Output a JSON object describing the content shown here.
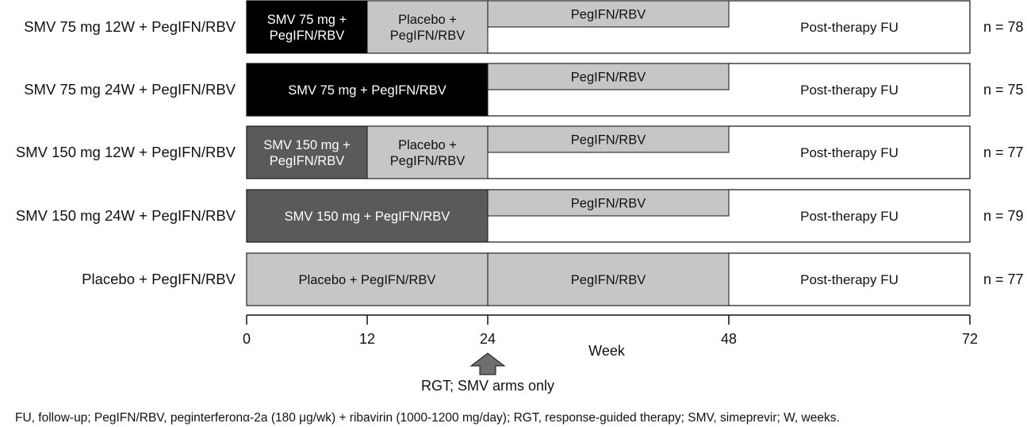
{
  "arms": [
    {
      "label": "SMV 75 mg 12W + PegIFN/RBV",
      "n": "n = 78",
      "segments": [
        {
          "start": 0,
          "end": 12,
          "lines": [
            "SMV 75 mg +",
            "PegIFN/RBV"
          ],
          "fill": "#000000",
          "text_color": "#ffffff"
        },
        {
          "start": 12,
          "end": 24,
          "lines": [
            "Placebo +",
            "PegIFN/RBV"
          ],
          "fill": "#c6c6c6",
          "text_color": "#111111"
        },
        {
          "start": 24,
          "end": 48,
          "lines": [
            "PegIFN/RBV"
          ],
          "fill": "#c6c6c6",
          "text_color": "#111111",
          "upper_half": true
        }
      ],
      "fu_label": "Post-therapy FU"
    },
    {
      "label": "SMV 75 mg 24W + PegIFN/RBV",
      "n": "n = 75",
      "segments": [
        {
          "start": 0,
          "end": 24,
          "lines": [
            "SMV 75 mg + PegIFN/RBV"
          ],
          "fill": "#000000",
          "text_color": "#ffffff"
        },
        {
          "start": 24,
          "end": 48,
          "lines": [
            "PegIFN/RBV"
          ],
          "fill": "#c6c6c6",
          "text_color": "#111111",
          "upper_half": true
        }
      ],
      "fu_label": "Post-therapy FU"
    },
    {
      "label": "SMV 150 mg 12W + PegIFN/RBV",
      "n": "n = 77",
      "segments": [
        {
          "start": 0,
          "end": 12,
          "lines": [
            "SMV 150 mg +",
            "PegIFN/RBV"
          ],
          "fill": "#5a5a5a",
          "text_color": "#ffffff"
        },
        {
          "start": 12,
          "end": 24,
          "lines": [
            "Placebo +",
            "PegIFN/RBV"
          ],
          "fill": "#c6c6c6",
          "text_color": "#111111"
        },
        {
          "start": 24,
          "end": 48,
          "lines": [
            "PegIFN/RBV"
          ],
          "fill": "#c6c6c6",
          "text_color": "#111111",
          "upper_half": true
        }
      ],
      "fu_label": "Post-therapy FU"
    },
    {
      "label": "SMV 150 mg 24W + PegIFN/RBV",
      "n": "n = 79",
      "segments": [
        {
          "start": 0,
          "end": 24,
          "lines": [
            "SMV 150 mg + PegIFN/RBV"
          ],
          "fill": "#5a5a5a",
          "text_color": "#ffffff"
        },
        {
          "start": 24,
          "end": 48,
          "lines": [
            "PegIFN/RBV"
          ],
          "fill": "#c6c6c6",
          "text_color": "#111111",
          "upper_half": true
        }
      ],
      "fu_label": "Post-therapy FU"
    },
    {
      "label": "Placebo + PegIFN/RBV",
      "n": "n = 77",
      "segments": [
        {
          "start": 0,
          "end": 24,
          "lines": [
            "Placebo + PegIFN/RBV"
          ],
          "fill": "#c6c6c6",
          "text_color": "#111111"
        },
        {
          "start": 24,
          "end": 48,
          "lines": [
            "PegIFN/RBV"
          ],
          "fill": "#c6c6c6",
          "text_color": "#111111",
          "upper_half": false
        }
      ],
      "fu_label": "Post-therapy FU"
    }
  ],
  "axis": {
    "title": "Week",
    "ticks": [
      0,
      12,
      24,
      48,
      72
    ],
    "min": 0,
    "max": 72
  },
  "marker": {
    "at_week": 24,
    "label": "RGT; SMV arms only",
    "color": "#6e6e6e"
  },
  "footnote": "FU, follow-up; PegIFN/RBV, peginterferonα-2a (180 μg/wk) + ribavirin (1000-1200 mg/day); RGT, response-guided therapy; SMV, simeprevir; W, weeks."
}
